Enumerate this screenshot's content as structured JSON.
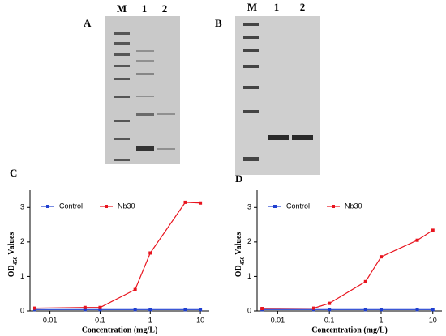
{
  "gels": [
    {
      "label": "A",
      "lanes": [
        "M",
        "1",
        "2"
      ]
    },
    {
      "label": "B",
      "lanes": [
        "M",
        "1",
        "2"
      ]
    }
  ],
  "chart_data": [
    {
      "type": "line",
      "label": "C",
      "xlabel": "Concentration (mg/L)",
      "ylabel": [
        "OD",
        "450",
        "Values"
      ],
      "log_x": true,
      "xlim": [
        0.004,
        15
      ],
      "xticks": [
        0.01,
        0.1,
        1,
        10
      ],
      "ylim": [
        0,
        3.5
      ],
      "yticks": [
        0,
        1,
        2,
        3
      ],
      "legend": "top",
      "x": [
        0.005,
        0.05,
        0.1,
        0.5,
        1,
        5,
        10
      ],
      "series": [
        {
          "name": "Control",
          "color": "#1f3fd0",
          "values": [
            0.04,
            0.04,
            0.04,
            0.04,
            0.04,
            0.04,
            0.04
          ]
        },
        {
          "name": "Nb30",
          "color": "#e8141e",
          "values": [
            0.08,
            0.1,
            0.1,
            0.62,
            1.68,
            3.15,
            3.13
          ]
        }
      ]
    },
    {
      "type": "line",
      "label": "D",
      "xlabel": "Concentration (mg/L)",
      "ylabel": [
        "OD",
        "450",
        "Values"
      ],
      "log_x": true,
      "xlim": [
        0.004,
        15
      ],
      "xticks": [
        0.01,
        0.1,
        1,
        10
      ],
      "ylim": [
        0,
        3.5
      ],
      "yticks": [
        0,
        1,
        2,
        3
      ],
      "legend": "top",
      "x": [
        0.005,
        0.05,
        0.1,
        0.5,
        1,
        5,
        10
      ],
      "series": [
        {
          "name": "Control",
          "color": "#1f3fd0",
          "values": [
            0.04,
            0.04,
            0.04,
            0.04,
            0.04,
            0.04,
            0.04
          ]
        },
        {
          "name": "Nb30",
          "color": "#e8141e",
          "values": [
            0.07,
            0.08,
            0.22,
            0.85,
            1.57,
            2.05,
            2.34
          ]
        }
      ]
    }
  ]
}
